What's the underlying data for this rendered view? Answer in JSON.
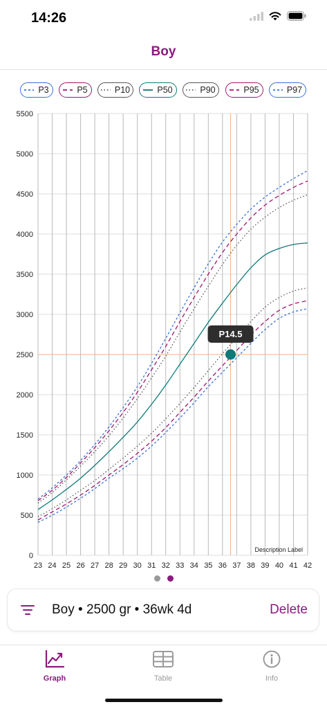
{
  "status_bar": {
    "time": "14:26"
  },
  "nav": {
    "title": "Boy"
  },
  "legend": [
    {
      "label": "P3",
      "color": "#3a6fd8",
      "dash": "3,3"
    },
    {
      "label": "P5",
      "color": "#a0166e",
      "dash": "6,4"
    },
    {
      "label": "P10",
      "color": "#555555",
      "dash": "1.5,3"
    },
    {
      "label": "P50",
      "color": "#0c7a78",
      "dash": ""
    },
    {
      "label": "P90",
      "color": "#555555",
      "dash": "1.5,3"
    },
    {
      "label": "P95",
      "color": "#a0166e",
      "dash": "6,4"
    },
    {
      "label": "P97",
      "color": "#3a6fd8",
      "dash": "3,3"
    }
  ],
  "chart_data": {
    "type": "line",
    "x": [
      23,
      24,
      25,
      26,
      27,
      28,
      29,
      30,
      31,
      32,
      33,
      34,
      35,
      36,
      37,
      38,
      39,
      40,
      41,
      42
    ],
    "xlim": [
      23,
      42
    ],
    "ylim": [
      0,
      5500
    ],
    "y_ticks": [
      0,
      500,
      1000,
      1500,
      2000,
      2500,
      3000,
      3500,
      4000,
      4500,
      5000,
      5500
    ],
    "grid": true,
    "annotation": "Description Label",
    "series": [
      {
        "name": "P3",
        "values": [
          410,
          500,
          600,
          710,
          830,
          960,
          1080,
          1210,
          1360,
          1530,
          1710,
          1900,
          2100,
          2280,
          2460,
          2640,
          2810,
          2950,
          3030,
          3070
        ]
      },
      {
        "name": "P5",
        "values": [
          440,
          540,
          640,
          750,
          870,
          1000,
          1130,
          1270,
          1420,
          1590,
          1780,
          1970,
          2170,
          2360,
          2550,
          2740,
          2910,
          3050,
          3130,
          3170
        ]
      },
      {
        "name": "P10",
        "values": [
          480,
          580,
          690,
          810,
          930,
          1070,
          1210,
          1360,
          1520,
          1700,
          1890,
          2090,
          2300,
          2510,
          2710,
          2910,
          3090,
          3210,
          3290,
          3330
        ]
      },
      {
        "name": "P50",
        "values": [
          570,
          690,
          820,
          960,
          1120,
          1290,
          1470,
          1660,
          1880,
          2120,
          2380,
          2640,
          2900,
          3140,
          3370,
          3580,
          3740,
          3820,
          3870,
          3890
        ]
      },
      {
        "name": "P90",
        "values": [
          650,
          780,
          940,
          1110,
          1290,
          1490,
          1710,
          1950,
          2210,
          2480,
          2780,
          3070,
          3350,
          3620,
          3860,
          4060,
          4210,
          4330,
          4420,
          4490
        ]
      },
      {
        "name": "P95",
        "values": [
          680,
          810,
          970,
          1150,
          1340,
          1550,
          1780,
          2030,
          2310,
          2600,
          2910,
          3210,
          3500,
          3770,
          4000,
          4200,
          4360,
          4480,
          4580,
          4660
        ]
      },
      {
        "name": "P97",
        "values": [
          700,
          840,
          1000,
          1180,
          1380,
          1600,
          1840,
          2100,
          2390,
          2700,
          3020,
          3330,
          3630,
          3900,
          4120,
          4310,
          4460,
          4580,
          4690,
          4790
        ]
      }
    ],
    "marker": {
      "x": 36.57,
      "y": 2500,
      "label": "P14.5",
      "color": "#0c7a78"
    },
    "crosshair_color": "#f4b183"
  },
  "summary": {
    "text": "Boy • 2500 gr • 36wk  4d",
    "delete_label": "Delete"
  },
  "tabs": [
    {
      "label": "Graph",
      "icon": "chart-icon",
      "active": true
    },
    {
      "label": "Table",
      "icon": "table-icon",
      "active": false
    },
    {
      "label": "Info",
      "icon": "info-icon",
      "active": false
    }
  ],
  "colors": {
    "accent": "#8b1a7e",
    "inactive": "#9a9a9a"
  }
}
